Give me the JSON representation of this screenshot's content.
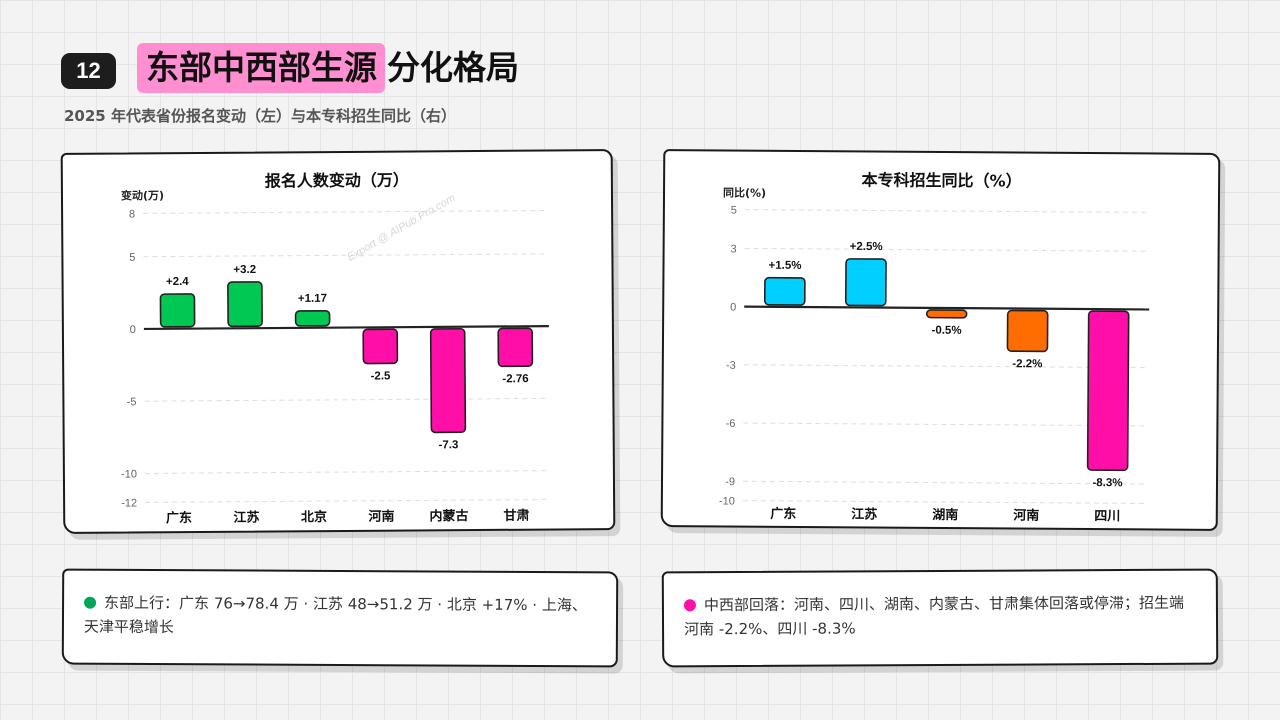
{
  "header": {
    "page_number": "12",
    "title_highlight": "东部中西部生源",
    "title_rest": "分化格局",
    "subtitle": "2025 年代表省份报名变动（左）与本专科招生同比（右）"
  },
  "watermark": "Export @ AIPub.Pro.com",
  "colors": {
    "green": "#00c853",
    "pink": "#ff0fa8",
    "cyan": "#00cfff",
    "orange": "#ff6d00",
    "highlight": "#ff8fd0"
  },
  "chart_data": [
    {
      "type": "bar",
      "title": "报名人数变动（万）",
      "ylabel": "变动(万)",
      "categories": [
        "广东",
        "江苏",
        "北京",
        "河南",
        "内蒙古",
        "甘肃"
      ],
      "values": [
        2.4,
        3.2,
        1.17,
        -2.5,
        -7.3,
        -2.76
      ],
      "value_labels": [
        "+2.4",
        "+3.2",
        "+1.17",
        "-2.5",
        "-7.3",
        "-2.76"
      ],
      "bar_colors": [
        "#00c853",
        "#00c853",
        "#00c853",
        "#ff0fa8",
        "#ff0fa8",
        "#ff0fa8"
      ],
      "yticks": [
        8,
        5,
        0,
        -5,
        -10,
        -12
      ],
      "ylim": [
        -12,
        8
      ],
      "grid": true
    },
    {
      "type": "bar",
      "title": "本专科招生同比（%）",
      "ylabel": "同比(%)",
      "categories": [
        "广东",
        "江苏",
        "湖南",
        "河南",
        "四川"
      ],
      "values": [
        1.5,
        2.5,
        -0.5,
        -2.2,
        -8.3
      ],
      "value_labels": [
        "+1.5%",
        "+2.5%",
        "-0.5%",
        "-2.2%",
        "-8.3%"
      ],
      "bar_colors": [
        "#00cfff",
        "#00cfff",
        "#ff6d00",
        "#ff6d00",
        "#ff0fa8"
      ],
      "yticks": [
        5,
        3,
        0,
        -3,
        -6,
        -9,
        -10
      ],
      "ylim": [
        -10,
        5
      ],
      "grid": true
    }
  ],
  "notes": {
    "left": {
      "dot_color": "#00a65a",
      "text": "东部上行：广东 76→78.4 万 · 江苏 48→51.2 万 · 北京 +17% · 上海、天津平稳增长"
    },
    "right": {
      "dot_color": "#ff0fa8",
      "text": "中西部回落：河南、四川、湖南、内蒙古、甘肃集体回落或停滞；招生端河南 -2.2%、四川 -8.3%"
    }
  }
}
